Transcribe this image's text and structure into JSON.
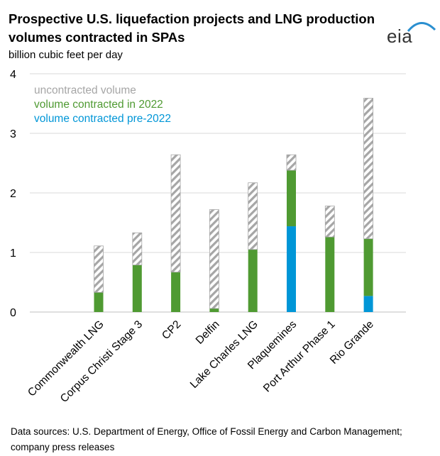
{
  "header": {
    "title": "Prospective U.S. liquefaction projects and LNG production volumes contracted in SPAs",
    "unit_label": "billion cubic feet per day",
    "logo_text": "eia"
  },
  "footer": {
    "source": "Data sources: U.S. Department of Energy, Office of Fossil Energy and Carbon Management; company press releases"
  },
  "colors": {
    "pre2022": "#0096d7",
    "in2022": "#4f9a32",
    "uncontracted_stripe": "#a6a6a6",
    "grid": "#d9d9d9"
  },
  "chart_data": {
    "type": "bar",
    "stacked": true,
    "categories": [
      "Commonwealth LNG",
      "Corpus Christi Stage 3",
      "CP2",
      "Delfin",
      "Lake Charles LNG",
      "Plaquemines",
      "Port Arthur Phase 1",
      "Rio Grande"
    ],
    "series": [
      {
        "name": "volume contracted pre-2022",
        "color": "#0096d7",
        "values": [
          0,
          0,
          0,
          0,
          0,
          1.44,
          0,
          0.27
        ]
      },
      {
        "name": "volume contracted in 2022",
        "color": "#4f9a32",
        "values": [
          0.33,
          0.79,
          0.67,
          0.06,
          1.05,
          0.94,
          1.26,
          0.96
        ]
      },
      {
        "name": "uncontracted volume",
        "color": "#a6a6a6",
        "values": [
          0.78,
          0.54,
          1.97,
          1.66,
          1.12,
          0.26,
          0.52,
          2.36
        ]
      }
    ],
    "legend_order": [
      "uncontracted volume",
      "volume contracted in 2022",
      "volume contracted pre-2022"
    ],
    "legend_placement": "top-left",
    "ylim": [
      0,
      4
    ],
    "yticks": [
      "0",
      "1",
      "2",
      "3",
      "4"
    ],
    "grid": true
  }
}
